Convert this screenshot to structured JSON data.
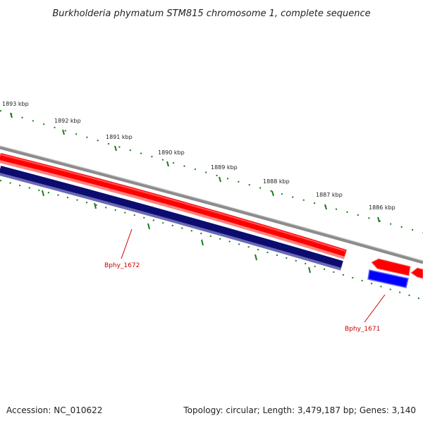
{
  "title": "Burkholderia phymatum STM815 chromosome 1, complete sequence",
  "accession": "Accession: NC_010622",
  "summary": "Topology: circular; Length: 3,479,187 bp; Genes: 3,140",
  "ticks": [
    {
      "label": "1893 kbp",
      "value": 1893
    },
    {
      "label": "1892 kbp",
      "value": 1892
    },
    {
      "label": "1891 kbp",
      "value": 1891
    },
    {
      "label": "1890 kbp",
      "value": 1890
    },
    {
      "label": "1889 kbp",
      "value": 1889
    },
    {
      "label": "1888 kbp",
      "value": 1888
    },
    {
      "label": "1887 kbp",
      "value": 1887
    },
    {
      "label": "1886 kbp",
      "value": 1886
    }
  ],
  "genes": [
    {
      "name": "Bphy_1672"
    },
    {
      "name": "Bphy_1671"
    }
  ],
  "colors": {
    "backbone": "#8c8c8c",
    "cds_forward": "#ff0000",
    "cds_forward_light": "#ff8080",
    "cds_reverse_dark": "#0c0c70",
    "cds_reverse": "#0000ff",
    "tick": "#1a7a1a",
    "label": "#cc0000"
  }
}
